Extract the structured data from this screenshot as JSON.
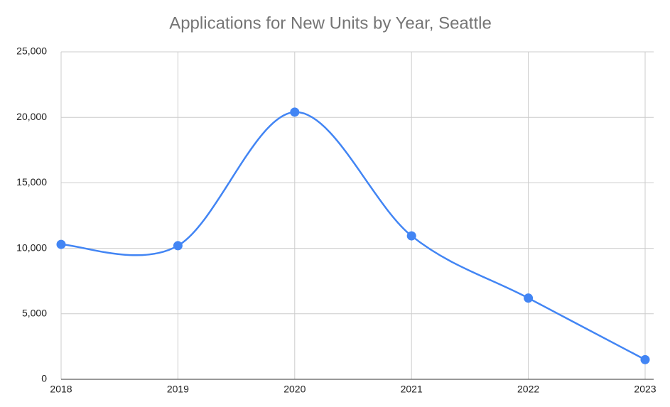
{
  "chart_data": {
    "type": "line",
    "title": "Applications for New Units by Year, Seattle",
    "x": [
      2018,
      2019,
      2020,
      2021,
      2022,
      2023
    ],
    "xlim": [
      2018,
      2023
    ],
    "xticks": [
      2018,
      2019,
      2020,
      2021,
      2022,
      2023
    ],
    "series": [
      {
        "color": "#4285f4",
        "values": [
          10300,
          10200,
          20400,
          10950,
          6200,
          1500
        ]
      }
    ],
    "ylim": [
      0,
      25000
    ],
    "yticks": [
      0,
      {
        "value": 5000,
        "label": "5,000"
      },
      {
        "value": 10000,
        "label": "10,000"
      },
      {
        "value": 15000,
        "label": "15,000"
      },
      {
        "value": 20000,
        "label": "20,000"
      },
      {
        "value": 25000,
        "label": "25,000"
      }
    ],
    "grid": true,
    "smooth": true
  }
}
